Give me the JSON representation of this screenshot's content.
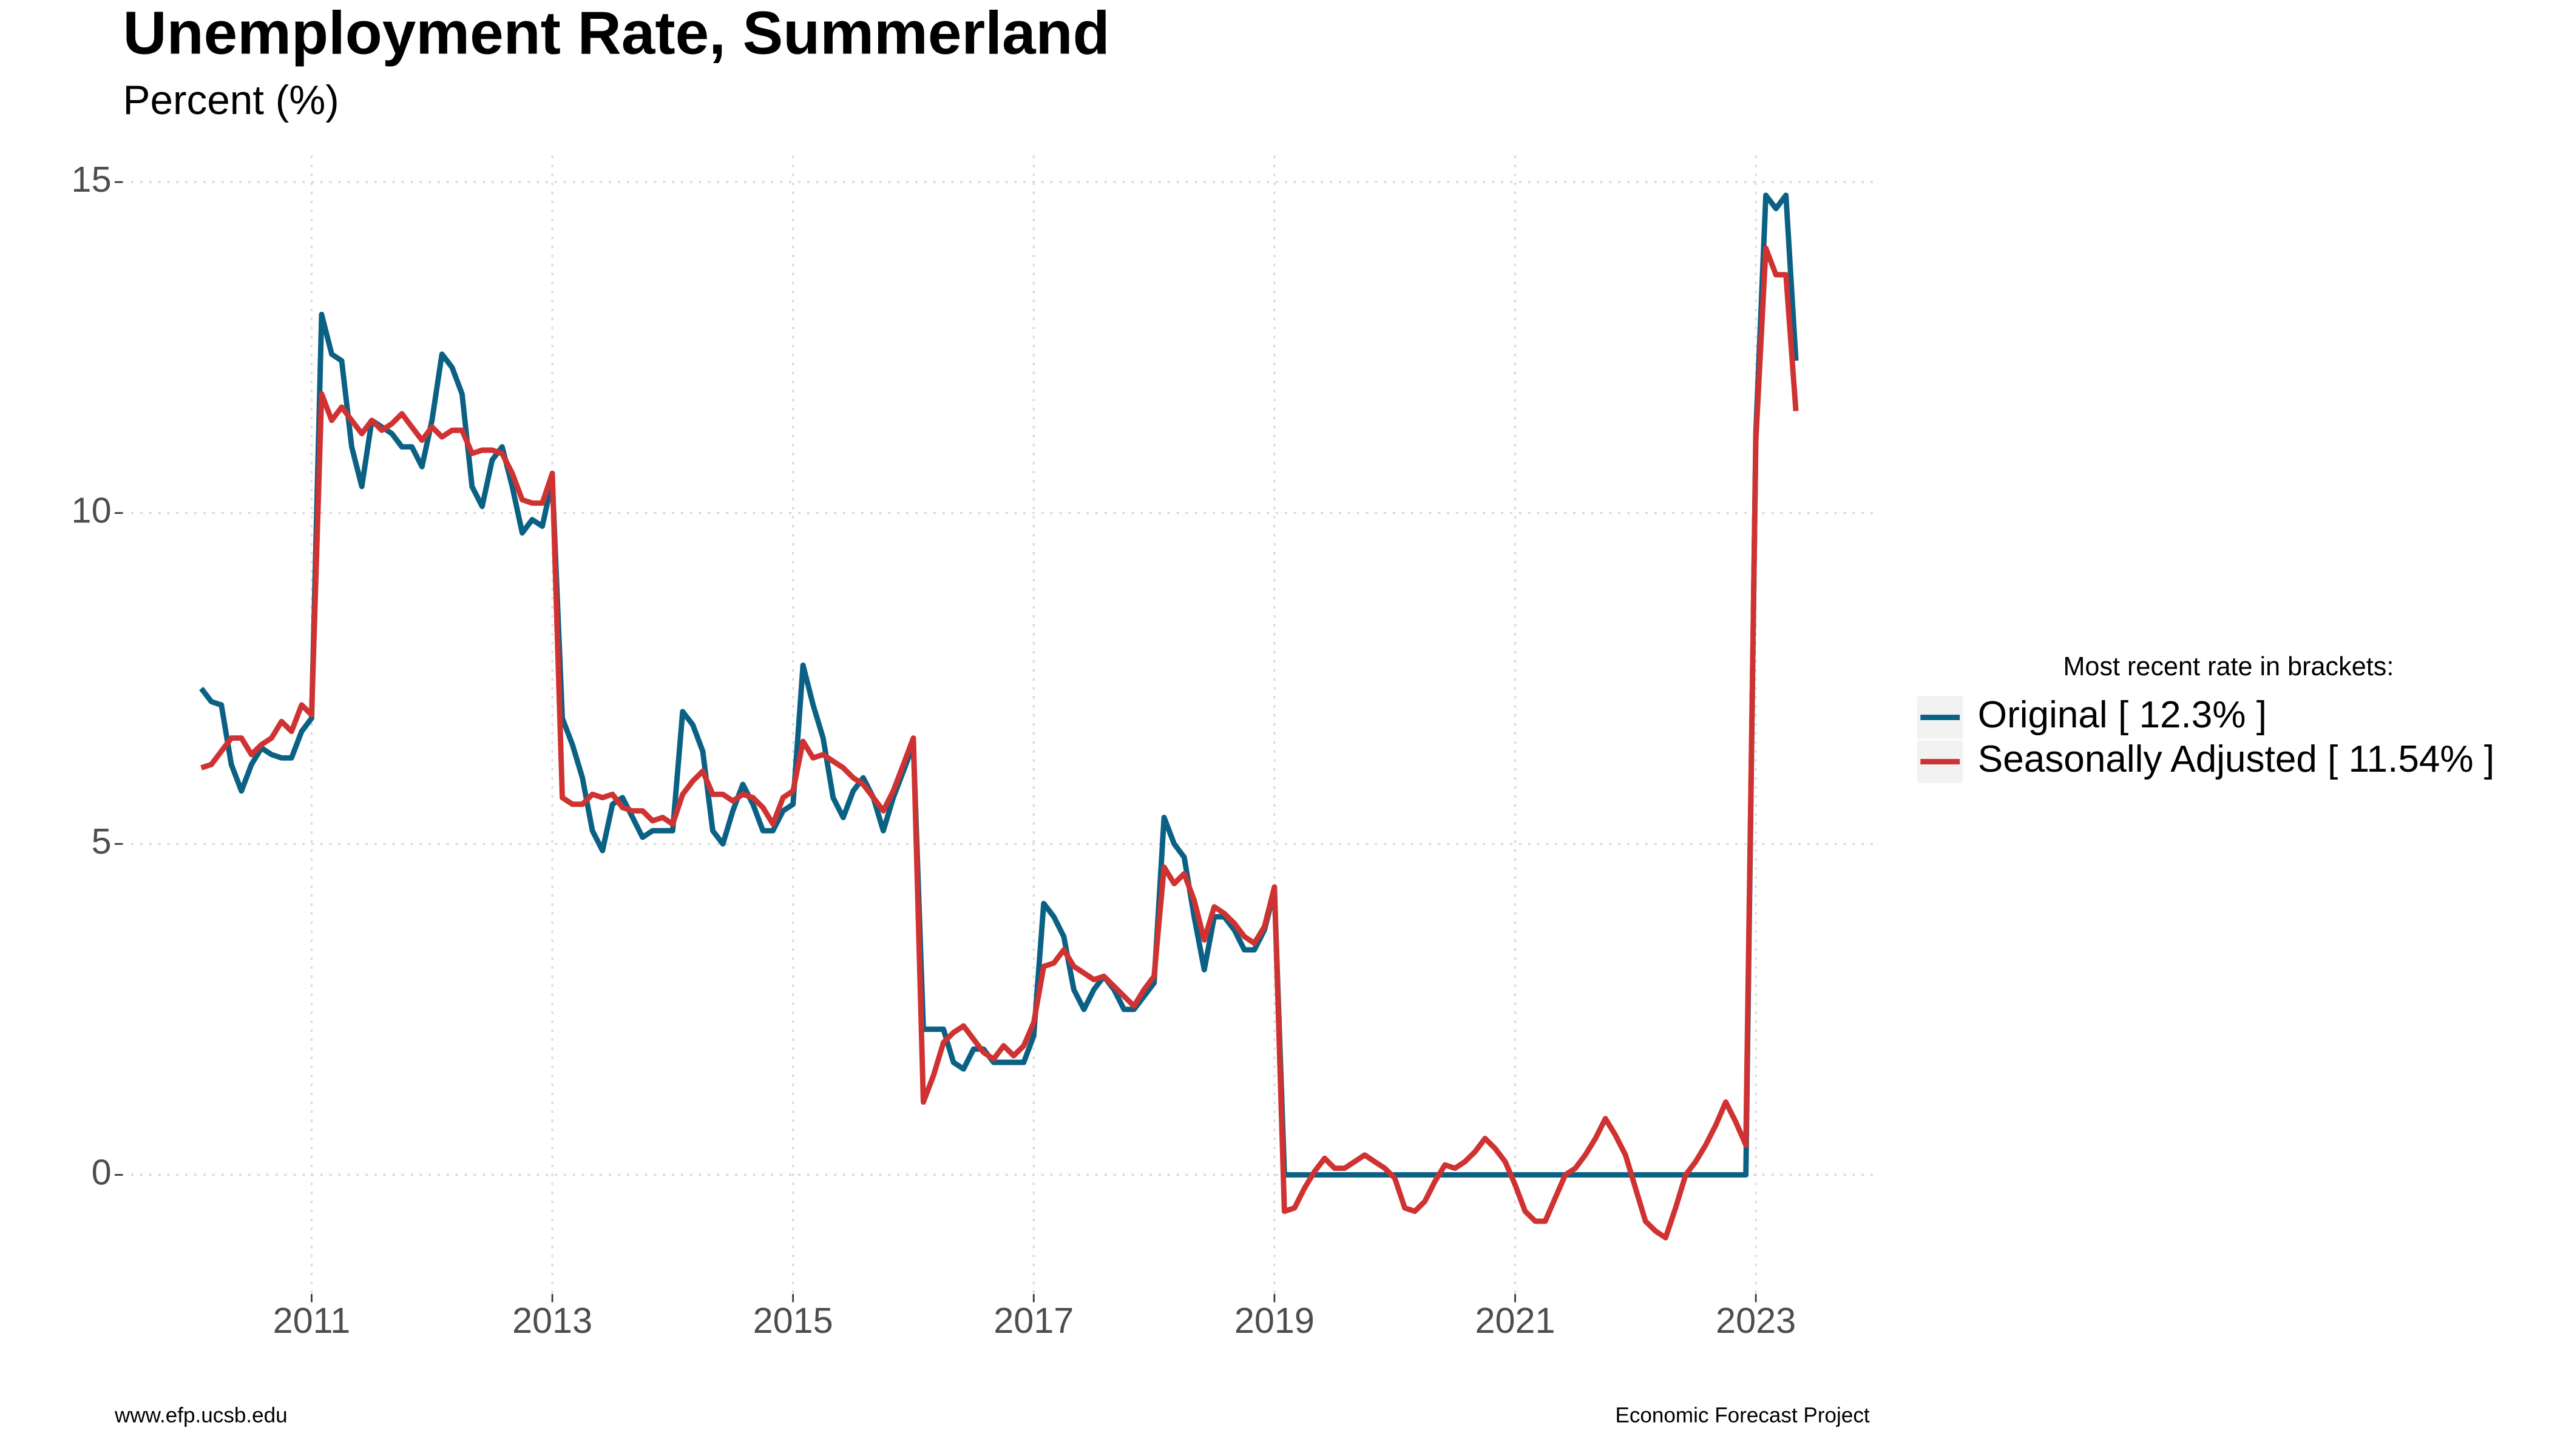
{
  "chart_data": {
    "type": "line",
    "title": "Unemployment Rate, Summerland",
    "subtitle": "Percent (%)",
    "source_left": "www.efp.ucsb.edu",
    "source_right": "Economic Forecast Project",
    "legend_title": "Most recent rate in brackets:",
    "legend_position": "right",
    "grid": true,
    "xlim": [
      2009.5,
      2024
    ],
    "xticks": [
      2011,
      2013,
      2015,
      2017,
      2019,
      2021,
      2023
    ],
    "ylim": [
      -1.8,
      15.4
    ],
    "yticks": [
      0,
      5,
      10,
      15
    ],
    "x": [
      2010.083,
      2010.167,
      2010.25,
      2010.333,
      2010.417,
      2010.5,
      2010.583,
      2010.667,
      2010.75,
      2010.833,
      2010.917,
      2011,
      2011.083,
      2011.167,
      2011.25,
      2011.333,
      2011.417,
      2011.5,
      2011.583,
      2011.667,
      2011.75,
      2011.833,
      2011.917,
      2012,
      2012.083,
      2012.167,
      2012.25,
      2012.333,
      2012.417,
      2012.5,
      2012.583,
      2012.667,
      2012.75,
      2012.833,
      2012.917,
      2013,
      2013.083,
      2013.167,
      2013.25,
      2013.333,
      2013.417,
      2013.5,
      2013.583,
      2013.667,
      2013.75,
      2013.833,
      2013.917,
      2014,
      2014.083,
      2014.167,
      2014.25,
      2014.333,
      2014.417,
      2014.5,
      2014.583,
      2014.667,
      2014.75,
      2014.833,
      2014.917,
      2015,
      2015.083,
      2015.167,
      2015.25,
      2015.333,
      2015.417,
      2015.5,
      2015.583,
      2015.667,
      2015.75,
      2015.833,
      2015.917,
      2016,
      2016.083,
      2016.167,
      2016.25,
      2016.333,
      2016.417,
      2016.5,
      2016.583,
      2016.667,
      2016.75,
      2016.833,
      2016.917,
      2017,
      2017.083,
      2017.167,
      2017.25,
      2017.333,
      2017.417,
      2017.5,
      2017.583,
      2017.667,
      2017.75,
      2017.833,
      2017.917,
      2018,
      2018.083,
      2018.167,
      2018.25,
      2018.333,
      2018.417,
      2018.5,
      2018.583,
      2018.667,
      2018.75,
      2018.833,
      2018.917,
      2019,
      2019.083,
      2019.167,
      2019.25,
      2019.333,
      2019.417,
      2019.5,
      2019.583,
      2019.667,
      2019.75,
      2019.833,
      2019.917,
      2020,
      2020.083,
      2020.167,
      2020.25,
      2020.333,
      2020.417,
      2020.5,
      2020.583,
      2020.667,
      2020.75,
      2020.833,
      2020.917,
      2021,
      2021.083,
      2021.167,
      2021.25,
      2021.333,
      2021.417,
      2021.5,
      2021.583,
      2021.667,
      2021.75,
      2021.833,
      2021.917,
      2022,
      2022.083,
      2022.167,
      2022.25,
      2022.333,
      2022.417,
      2022.5,
      2022.583,
      2022.667,
      2022.75,
      2022.833,
      2022.917,
      2023,
      2023.083,
      2023.167,
      2023.25,
      2023.333
    ],
    "series": [
      {
        "name": "Original [ 12.3% ]",
        "color": "#0b6184",
        "values": [
          7.35,
          7.15,
          7.1,
          6.2,
          5.8,
          6.2,
          6.45,
          6.35,
          6.3,
          6.3,
          6.7,
          6.9,
          13.0,
          12.4,
          12.3,
          11.0,
          10.4,
          11.4,
          11.3,
          11.2,
          11.0,
          11.0,
          10.7,
          11.4,
          12.4,
          12.2,
          11.8,
          10.4,
          10.1,
          10.8,
          11.0,
          10.4,
          9.7,
          9.9,
          9.8,
          10.5,
          6.9,
          6.5,
          6.0,
          5.2,
          4.9,
          5.6,
          5.7,
          5.4,
          5.1,
          5.2,
          5.2,
          5.2,
          7.0,
          6.8,
          6.4,
          5.2,
          5.0,
          5.5,
          5.9,
          5.6,
          5.2,
          5.2,
          5.5,
          5.6,
          7.7,
          7.1,
          6.6,
          5.7,
          5.4,
          5.8,
          6.0,
          5.7,
          5.2,
          5.7,
          6.1,
          6.5,
          2.2,
          2.2,
          2.2,
          1.7,
          1.6,
          1.9,
          1.9,
          1.7,
          1.7,
          1.7,
          1.7,
          2.1,
          4.1,
          3.9,
          3.6,
          2.8,
          2.5,
          2.8,
          3.0,
          2.8,
          2.5,
          2.5,
          2.7,
          2.9,
          5.4,
          5.0,
          4.8,
          3.9,
          3.1,
          3.9,
          3.9,
          3.7,
          3.4,
          3.4,
          3.7,
          4.3,
          0,
          0,
          0,
          0,
          0,
          0,
          0,
          0,
          0,
          0,
          0,
          0,
          0,
          0,
          0,
          0,
          0,
          0,
          0,
          0,
          0,
          0,
          0,
          0,
          0,
          0,
          0,
          0,
          0,
          0,
          0,
          0,
          0,
          0,
          0,
          0,
          0,
          0,
          0,
          0,
          0,
          0,
          0,
          0,
          0,
          0,
          0,
          11.2,
          14.8,
          14.6,
          14.8,
          12.3
        ]
      },
      {
        "name": "Seasonally Adjusted [ 11.54% ]",
        "color": "#d03232",
        "values": [
          6.15,
          6.2,
          6.4,
          6.6,
          6.6,
          6.35,
          6.5,
          6.6,
          6.85,
          6.7,
          7.1,
          6.95,
          11.8,
          11.4,
          11.6,
          11.4,
          11.2,
          11.4,
          11.25,
          11.35,
          11.5,
          11.3,
          11.1,
          11.3,
          11.15,
          11.25,
          11.25,
          10.9,
          10.95,
          10.95,
          10.9,
          10.6,
          10.2,
          10.15,
          10.15,
          10.6,
          5.7,
          5.6,
          5.6,
          5.75,
          5.7,
          5.75,
          5.55,
          5.5,
          5.5,
          5.35,
          5.4,
          5.3,
          5.75,
          5.95,
          6.1,
          5.75,
          5.75,
          5.65,
          5.75,
          5.7,
          5.55,
          5.3,
          5.7,
          5.8,
          6.55,
          6.3,
          6.35,
          6.25,
          6.15,
          6.0,
          5.9,
          5.7,
          5.5,
          5.8,
          6.2,
          6.6,
          1.1,
          1.5,
          2.0,
          2.15,
          2.25,
          2.05,
          1.85,
          1.75,
          1.95,
          1.8,
          1.95,
          2.3,
          3.15,
          3.2,
          3.4,
          3.15,
          3.05,
          2.95,
          3.0,
          2.85,
          2.7,
          2.55,
          2.8,
          3.0,
          4.65,
          4.4,
          4.55,
          4.15,
          3.55,
          4.05,
          3.95,
          3.8,
          3.6,
          3.5,
          3.75,
          4.35,
          -0.55,
          -0.5,
          -0.2,
          0.05,
          0.25,
          0.1,
          0.1,
          0.2,
          0.3,
          0.2,
          0.1,
          -0.05,
          -0.5,
          -0.55,
          -0.4,
          -0.1,
          0.15,
          0.1,
          0.2,
          0.35,
          0.55,
          0.4,
          0.2,
          -0.15,
          -0.55,
          -0.7,
          -0.7,
          -0.35,
          0.0,
          0.1,
          0.3,
          0.55,
          0.85,
          0.6,
          0.3,
          -0.2,
          -0.7,
          -0.85,
          -0.95,
          -0.5,
          0.0,
          0.2,
          0.45,
          0.75,
          1.1,
          0.8,
          0.45,
          11.1,
          14.0,
          13.6,
          13.6,
          11.54
        ]
      }
    ]
  }
}
